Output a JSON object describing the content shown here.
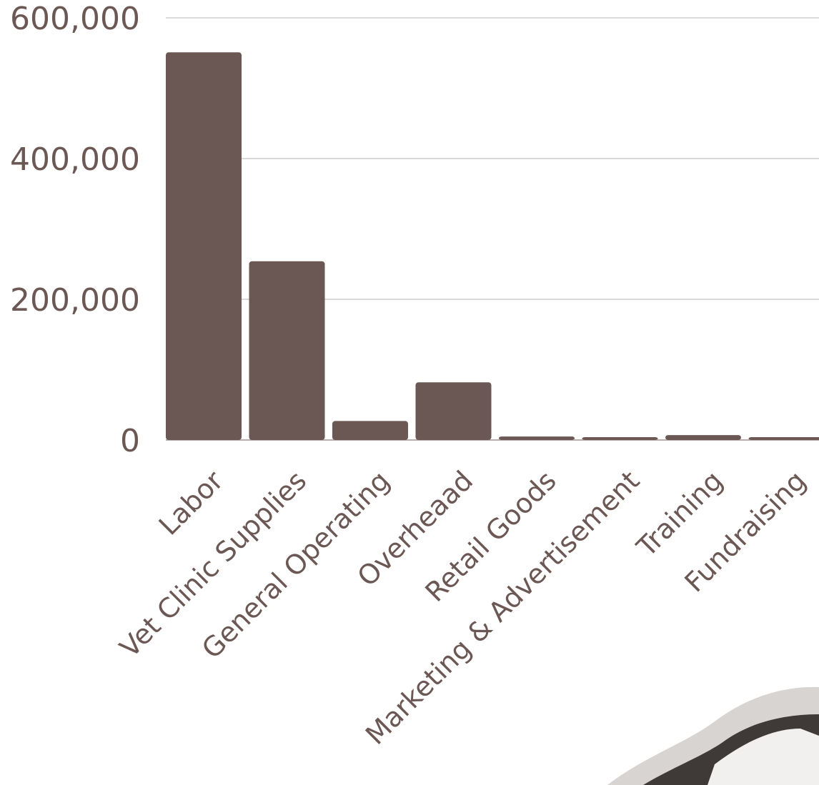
{
  "chart_data": {
    "type": "bar",
    "categories": [
      "Labor",
      "Vet Clinic Supplies",
      "General Operating",
      "Overheaad",
      "Retail Goods",
      "Marketing & Advertisement",
      "Training",
      "Fundraising"
    ],
    "values": [
      551000,
      254000,
      27000,
      82000,
      5000,
      4000,
      7000,
      4000
    ],
    "color": "#6b5854",
    "ylim": [
      0,
      600000
    ],
    "yticks": [
      0,
      {
        "value": 200000,
        "label": "200,000"
      },
      {
        "value": 400000,
        "label": "400,000"
      },
      {
        "value": 600000,
        "label": "600,000"
      }
    ],
    "grid": true
  }
}
